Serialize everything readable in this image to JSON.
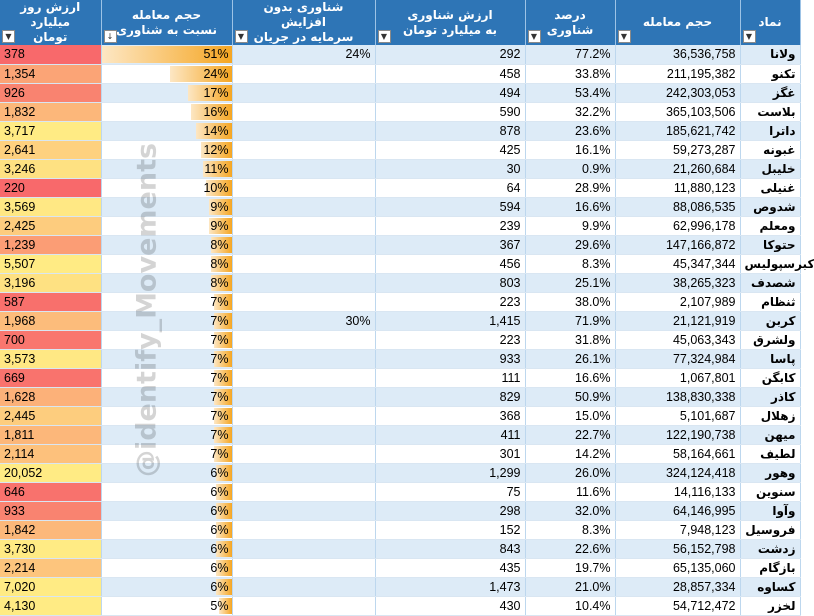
{
  "headers": {
    "symbol": "نماد",
    "volume": "حجم معامله",
    "float_percent": "درصد شناوری",
    "float_value_line1": "ارزش شناوری",
    "float_value_line2": "به میلیارد تومان",
    "float_no_increase_line1": "شناوری بدون افزایش",
    "float_no_increase_line2": "سرمایه در جریان",
    "volume_ratio_line1": "حجم معامله",
    "volume_ratio_line2": "نسبت به شناوری",
    "day_value_line1": "ارزش روز",
    "day_value_line2": "میلیارد تومان"
  },
  "filter_icon": "dropdown-arrow-icon",
  "sort_icon": "sort-descending-icon",
  "watermark": "@identify_Movements",
  "colors": {
    "header_bg": "#2e75b6",
    "row_band": "#ddebf7",
    "bar": "#f5a623",
    "heat_low": "#f8696b",
    "heat_mid": "#ffeb84"
  },
  "rows": [
    {
      "symbol": "ولانا",
      "volume": "36,536,758",
      "float_percent": "77.2%",
      "float_value": "292",
      "float_no_increase": "24%",
      "ratio": "51%",
      "ratio_value": 51,
      "day_value": "378",
      "heat": 0.0
    },
    {
      "symbol": "تکنو",
      "volume": "211,195,382",
      "float_percent": "33.8%",
      "float_value": "458",
      "float_no_increase": "",
      "ratio": "24%",
      "ratio_value": 24,
      "day_value": "1,354",
      "heat": 0.45
    },
    {
      "symbol": "غگز",
      "volume": "242,303,053",
      "float_percent": "53.4%",
      "float_value": "494",
      "float_no_increase": "",
      "ratio": "17%",
      "ratio_value": 17,
      "day_value": "926",
      "heat": 0.2
    },
    {
      "symbol": "بلاست",
      "volume": "365,103,506",
      "float_percent": "32.2%",
      "float_value": "590",
      "float_no_increase": "",
      "ratio": "16%",
      "ratio_value": 16,
      "day_value": "1,832",
      "heat": 0.6
    },
    {
      "symbol": "داترا",
      "volume": "185,621,742",
      "float_percent": "23.6%",
      "float_value": "878",
      "float_no_increase": "",
      "ratio": "14%",
      "ratio_value": 14,
      "day_value": "3,717",
      "heat": 1.0
    },
    {
      "symbol": "غبونه",
      "volume": "59,273,287",
      "float_percent": "16.1%",
      "float_value": "425",
      "float_no_increase": "",
      "ratio": "12%",
      "ratio_value": 12,
      "day_value": "2,641",
      "heat": 0.8
    },
    {
      "symbol": "خلیبل",
      "volume": "21,260,684",
      "float_percent": "0.9%",
      "float_value": "30",
      "float_no_increase": "",
      "ratio": "11%",
      "ratio_value": 11,
      "day_value": "3,246",
      "heat": 0.92
    },
    {
      "symbol": "غنیلی",
      "volume": "11,880,123",
      "float_percent": "28.9%",
      "float_value": "64",
      "float_no_increase": "",
      "ratio": "10%",
      "ratio_value": 10,
      "day_value": "220",
      "heat": 0.0
    },
    {
      "symbol": "شدوص",
      "volume": "88,086,535",
      "float_percent": "16.6%",
      "float_value": "594",
      "float_no_increase": "",
      "ratio": "9%",
      "ratio_value": 9,
      "day_value": "3,569",
      "heat": 0.98
    },
    {
      "symbol": "ومعلم",
      "volume": "62,996,178",
      "float_percent": "9.9%",
      "float_value": "239",
      "float_no_increase": "",
      "ratio": "9%",
      "ratio_value": 9,
      "day_value": "2,425",
      "heat": 0.76
    },
    {
      "symbol": "حتوکا",
      "volume": "147,166,872",
      "float_percent": "29.6%",
      "float_value": "367",
      "float_no_increase": "",
      "ratio": "8%",
      "ratio_value": 8,
      "day_value": "1,239",
      "heat": 0.4
    },
    {
      "symbol": "کبرسپولیس",
      "volume": "45,347,344",
      "float_percent": "8.3%",
      "float_value": "456",
      "float_no_increase": "",
      "ratio": "8%",
      "ratio_value": 8,
      "day_value": "5,507",
      "heat": 1.0
    },
    {
      "symbol": "شصدف",
      "volume": "38,265,323",
      "float_percent": "25.1%",
      "float_value": "803",
      "float_no_increase": "",
      "ratio": "8%",
      "ratio_value": 8,
      "day_value": "3,196",
      "heat": 0.92
    },
    {
      "symbol": "ثنظام",
      "volume": "2,107,989",
      "float_percent": "38.0%",
      "float_value": "223",
      "float_no_increase": "",
      "ratio": "7%",
      "ratio_value": 7,
      "day_value": "587",
      "heat": 0.05
    },
    {
      "symbol": "کربن",
      "volume": "21,121,919",
      "float_percent": "71.9%",
      "float_value": "1,415",
      "float_no_increase": "30%",
      "ratio": "7%",
      "ratio_value": 7,
      "day_value": "1,968",
      "heat": 0.64
    },
    {
      "symbol": "ولشرق",
      "volume": "45,063,343",
      "float_percent": "31.8%",
      "float_value": "223",
      "float_no_increase": "",
      "ratio": "7%",
      "ratio_value": 7,
      "day_value": "700",
      "heat": 0.1
    },
    {
      "symbol": "پاسا",
      "volume": "77,324,984",
      "float_percent": "26.1%",
      "float_value": "933",
      "float_no_increase": "",
      "ratio": "7%",
      "ratio_value": 7,
      "day_value": "3,573",
      "heat": 0.98
    },
    {
      "symbol": "کابگن",
      "volume": "1,067,801",
      "float_percent": "16.6%",
      "float_value": "111",
      "float_no_increase": "",
      "ratio": "7%",
      "ratio_value": 7,
      "day_value": "669",
      "heat": 0.08
    },
    {
      "symbol": "کاذر",
      "volume": "138,830,338",
      "float_percent": "50.9%",
      "float_value": "829",
      "float_no_increase": "",
      "ratio": "7%",
      "ratio_value": 7,
      "day_value": "1,628",
      "heat": 0.55
    },
    {
      "symbol": "زهلال",
      "volume": "5,101,687",
      "float_percent": "15.0%",
      "float_value": "368",
      "float_no_increase": "",
      "ratio": "7%",
      "ratio_value": 7,
      "day_value": "2,445",
      "heat": 0.77
    },
    {
      "symbol": "میهن",
      "volume": "122,190,738",
      "float_percent": "22.7%",
      "float_value": "411",
      "float_no_increase": "",
      "ratio": "7%",
      "ratio_value": 7,
      "day_value": "1,811",
      "heat": 0.6
    },
    {
      "symbol": "لطیف",
      "volume": "58,164,661",
      "float_percent": "14.2%",
      "float_value": "301",
      "float_no_increase": "",
      "ratio": "7%",
      "ratio_value": 7,
      "day_value": "2,114",
      "heat": 0.68
    },
    {
      "symbol": "وهور",
      "volume": "324,124,418",
      "float_percent": "26.0%",
      "float_value": "1,299",
      "float_no_increase": "",
      "ratio": "6%",
      "ratio_value": 6,
      "day_value": "20,052",
      "heat": 1.0
    },
    {
      "symbol": "سنوین",
      "volume": "14,116,133",
      "float_percent": "11.6%",
      "float_value": "75",
      "float_no_increase": "",
      "ratio": "6%",
      "ratio_value": 6,
      "day_value": "646",
      "heat": 0.07
    },
    {
      "symbol": "وآوا",
      "volume": "64,146,995",
      "float_percent": "32.0%",
      "float_value": "298",
      "float_no_increase": "",
      "ratio": "6%",
      "ratio_value": 6,
      "day_value": "933",
      "heat": 0.2
    },
    {
      "symbol": "فروسیل",
      "volume": "7,948,123",
      "float_percent": "8.3%",
      "float_value": "152",
      "float_no_increase": "",
      "ratio": "6%",
      "ratio_value": 6,
      "day_value": "1,842",
      "heat": 0.61
    },
    {
      "symbol": "زدشت",
      "volume": "56,152,798",
      "float_percent": "22.6%",
      "float_value": "843",
      "float_no_increase": "",
      "ratio": "6%",
      "ratio_value": 6,
      "day_value": "3,730",
      "heat": 1.0
    },
    {
      "symbol": "بازگام",
      "volume": "65,135,060",
      "float_percent": "19.7%",
      "float_value": "435",
      "float_no_increase": "",
      "ratio": "6%",
      "ratio_value": 6,
      "day_value": "2,214",
      "heat": 0.71
    },
    {
      "symbol": "کساوه",
      "volume": "28,857,334",
      "float_percent": "21.0%",
      "float_value": "1,473",
      "float_no_increase": "",
      "ratio": "6%",
      "ratio_value": 6,
      "day_value": "7,020",
      "heat": 1.0
    },
    {
      "symbol": "لخزر",
      "volume": "54,712,472",
      "float_percent": "10.4%",
      "float_value": "430",
      "float_no_increase": "",
      "ratio": "5%",
      "ratio_value": 5,
      "day_value": "4,130",
      "heat": 1.0
    }
  ]
}
